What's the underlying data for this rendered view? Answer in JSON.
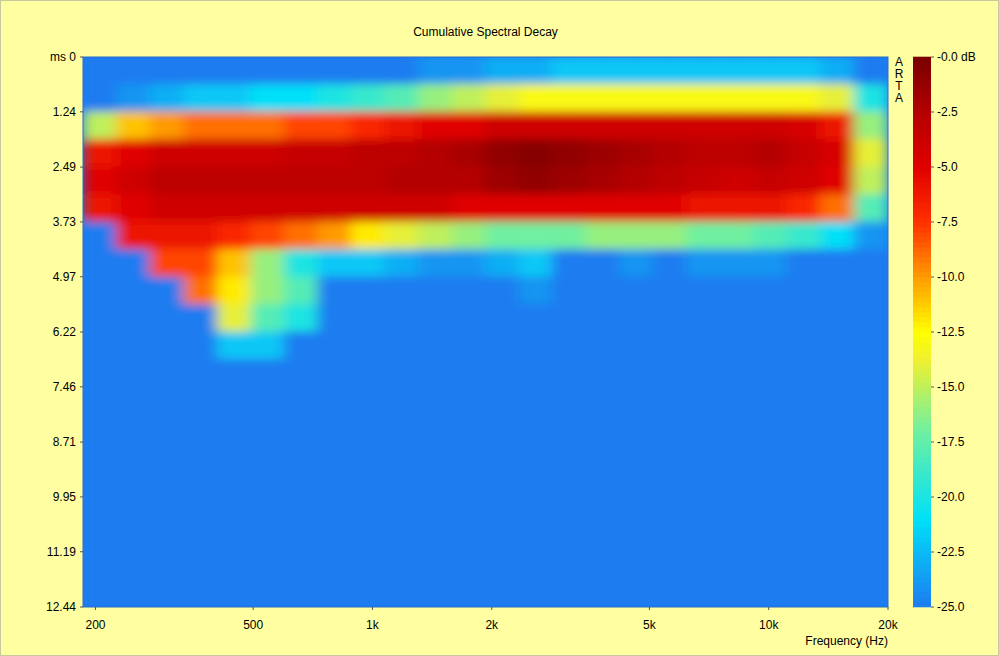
{
  "chart_data": {
    "type": "heatmap",
    "title": "Cumulative Spectral Decay",
    "xlabel": "Frequency (Hz)",
    "annotations": [
      "ARTA"
    ],
    "log": "x",
    "xlim": [
      186,
      20000
    ],
    "ylim": [
      0,
      12.44
    ],
    "xticks": [
      200,
      500,
      {
        "value": 1000,
        "label": "1k"
      },
      {
        "value": 2000,
        "label": "2k"
      },
      {
        "value": 5000,
        "label": "5k"
      },
      {
        "value": 10000,
        "label": "10k"
      },
      {
        "value": 20000,
        "label": "20k"
      }
    ],
    "yticks": [
      {
        "value": 0,
        "label": "ms 0"
      },
      1.24,
      2.49,
      3.73,
      4.97,
      6.22,
      7.46,
      8.71,
      9.95,
      11.19,
      12.44
    ],
    "x": [
      205,
      249,
      303,
      368,
      447,
      543,
      660,
      802,
      974,
      1184,
      1439,
      1748,
      2123,
      2580,
      3134,
      3809,
      4628,
      5623,
      6833,
      8303,
      10089,
      12258,
      14894,
      18100
    ],
    "y": [
      0.311,
      0.933,
      1.555,
      2.177,
      2.799,
      3.421,
      4.043,
      4.665,
      5.287,
      5.909,
      6.531,
      7.153,
      7.775,
      8.397,
      9.019,
      9.641,
      10.263,
      10.885,
      11.507,
      12.129
    ],
    "cells": [
      [
        -25,
        -25,
        -25,
        -25,
        -25,
        -25,
        -25,
        -25,
        -25,
        -25,
        -24,
        -24,
        -23,
        -23,
        -22,
        -22,
        -22,
        -22,
        -22,
        -22,
        -22,
        -22,
        -23,
        -25
      ],
      [
        -25,
        -24,
        -23,
        -22,
        -22,
        -21,
        -21,
        -20,
        -19,
        -18,
        -16,
        -15,
        -14,
        -13,
        -13,
        -13,
        -13,
        -13,
        -13,
        -13,
        -13,
        -13,
        -14,
        -20
      ],
      [
        -15,
        -11,
        -10,
        -9,
        -9,
        -9,
        -8,
        -8,
        -7,
        -6,
        -5,
        -5,
        -4,
        -4,
        -4,
        -4,
        -4,
        -4,
        -4,
        -4,
        -4,
        -4.5,
        -6,
        -16
      ],
      [
        -6,
        -5,
        -4,
        -4,
        -4,
        -4,
        -3.5,
        -3.5,
        -3,
        -3,
        -2.5,
        -2,
        -1,
        -0.5,
        -1,
        -1.5,
        -2,
        -2.5,
        -3,
        -3,
        -2.5,
        -3.5,
        -4.5,
        -14
      ],
      [
        -5,
        -4,
        -3,
        -3,
        -3,
        -3,
        -3,
        -3,
        -3,
        -2.5,
        -2.5,
        -2.5,
        -1.5,
        -1,
        -1.5,
        -2,
        -2.5,
        -3,
        -3.5,
        -4,
        -3.5,
        -4,
        -5,
        -15
      ],
      [
        -6,
        -5,
        -4,
        -4,
        -4,
        -4,
        -4,
        -4,
        -4,
        -4,
        -4,
        -5,
        -5,
        -5,
        -5,
        -5,
        -5,
        -5,
        -6,
        -6,
        -6,
        -7,
        -9,
        -18
      ],
      [
        -25,
        -6,
        -6,
        -6,
        -7,
        -8,
        -9,
        -10,
        -12,
        -14,
        -15,
        -16,
        -17,
        -17,
        -17,
        -16,
        -16,
        -16,
        -17,
        -17,
        -18,
        -19,
        -21,
        -24
      ],
      [
        -25,
        -25,
        -8,
        -8,
        -11,
        -16,
        -20,
        -22,
        -22,
        -23,
        -24,
        -24,
        -23,
        -22,
        -25,
        -25,
        -24,
        -25,
        -24,
        -24,
        -24,
        -25,
        -25,
        -25
      ],
      [
        -25,
        -25,
        -25,
        -9,
        -12,
        -16,
        -18,
        -25,
        -25,
        -25,
        -25,
        -25,
        -25,
        -24,
        -25,
        -25,
        -25,
        -25,
        -25,
        -25,
        -25,
        -25,
        -25,
        -25
      ],
      [
        -25,
        -25,
        -25,
        -25,
        -14,
        -18,
        -20,
        -25,
        -25,
        -25,
        -25,
        -25,
        -25,
        -25,
        -25,
        -25,
        -25,
        -25,
        -25,
        -25,
        -25,
        -25,
        -25,
        -25
      ],
      [
        -25,
        -25,
        -25,
        -25,
        -22,
        -22,
        -25,
        -25,
        -25,
        -25,
        -25,
        -25,
        -25,
        -25,
        -25,
        -25,
        -25,
        -25,
        -25,
        -25,
        -25,
        -25,
        -25,
        -25
      ],
      [
        -25,
        -25,
        -25,
        -25,
        -25,
        -25,
        -25,
        -25,
        -25,
        -25,
        -25,
        -25,
        -25,
        -25,
        -25,
        -25,
        -25,
        -25,
        -25,
        -25,
        -25,
        -25,
        -25,
        -25
      ],
      [
        -25,
        -25,
        -25,
        -25,
        -25,
        -25,
        -25,
        -25,
        -25,
        -25,
        -25,
        -25,
        -25,
        -25,
        -25,
        -25,
        -25,
        -25,
        -25,
        -25,
        -25,
        -25,
        -25,
        -25
      ],
      [
        -25,
        -25,
        -25,
        -25,
        -25,
        -25,
        -25,
        -25,
        -25,
        -25,
        -25,
        -25,
        -25,
        -25,
        -25,
        -25,
        -25,
        -25,
        -25,
        -25,
        -25,
        -25,
        -25,
        -25
      ],
      [
        -25,
        -25,
        -25,
        -25,
        -25,
        -25,
        -25,
        -25,
        -25,
        -25,
        -25,
        -25,
        -25,
        -25,
        -25,
        -25,
        -25,
        -25,
        -25,
        -25,
        -25,
        -25,
        -25,
        -25
      ],
      [
        -25,
        -25,
        -25,
        -25,
        -25,
        -25,
        -25,
        -25,
        -25,
        -25,
        -25,
        -25,
        -25,
        -25,
        -25,
        -25,
        -25,
        -25,
        -25,
        -25,
        -25,
        -25,
        -25,
        -25
      ],
      [
        -25,
        -25,
        -25,
        -25,
        -25,
        -25,
        -25,
        -25,
        -25,
        -25,
        -25,
        -25,
        -25,
        -25,
        -25,
        -25,
        -25,
        -25,
        -25,
        -25,
        -25,
        -25,
        -25,
        -25
      ],
      [
        -25,
        -25,
        -25,
        -25,
        -25,
        -25,
        -25,
        -25,
        -25,
        -25,
        -25,
        -25,
        -25,
        -25,
        -25,
        -25,
        -25,
        -25,
        -25,
        -25,
        -25,
        -25,
        -25,
        -25
      ],
      [
        -25,
        -25,
        -25,
        -25,
        -25,
        -25,
        -25,
        -25,
        -25,
        -25,
        -25,
        -25,
        -25,
        -25,
        -25,
        -25,
        -25,
        -25,
        -25,
        -25,
        -25,
        -25,
        -25,
        -25
      ],
      [
        -25,
        -25,
        -25,
        -25,
        -25,
        -25,
        -25,
        -25,
        -25,
        -25,
        -25,
        -25,
        -25,
        -25,
        -25,
        -25,
        -25,
        -25,
        -25,
        -25,
        -25,
        -25,
        -25,
        -25
      ]
    ],
    "colorbar_range": [
      -25,
      0
    ],
    "colorbar_ticks": [
      {
        "value": 0,
        "label": "-0.0 dB"
      },
      {
        "value": -2.5,
        "label": "-2.5"
      },
      {
        "value": -5,
        "label": "-5.0"
      },
      {
        "value": -7.5,
        "label": "-7.5"
      },
      {
        "value": -10,
        "label": "-10.0"
      },
      {
        "value": -12.5,
        "label": "-12.5"
      },
      {
        "value": -15,
        "label": "-15.0"
      },
      {
        "value": -17.5,
        "label": "-17.5"
      },
      {
        "value": -20,
        "label": "-20.0"
      },
      {
        "value": -22.5,
        "label": "-22.5"
      },
      {
        "value": -25,
        "label": "-25.0"
      }
    ]
  }
}
